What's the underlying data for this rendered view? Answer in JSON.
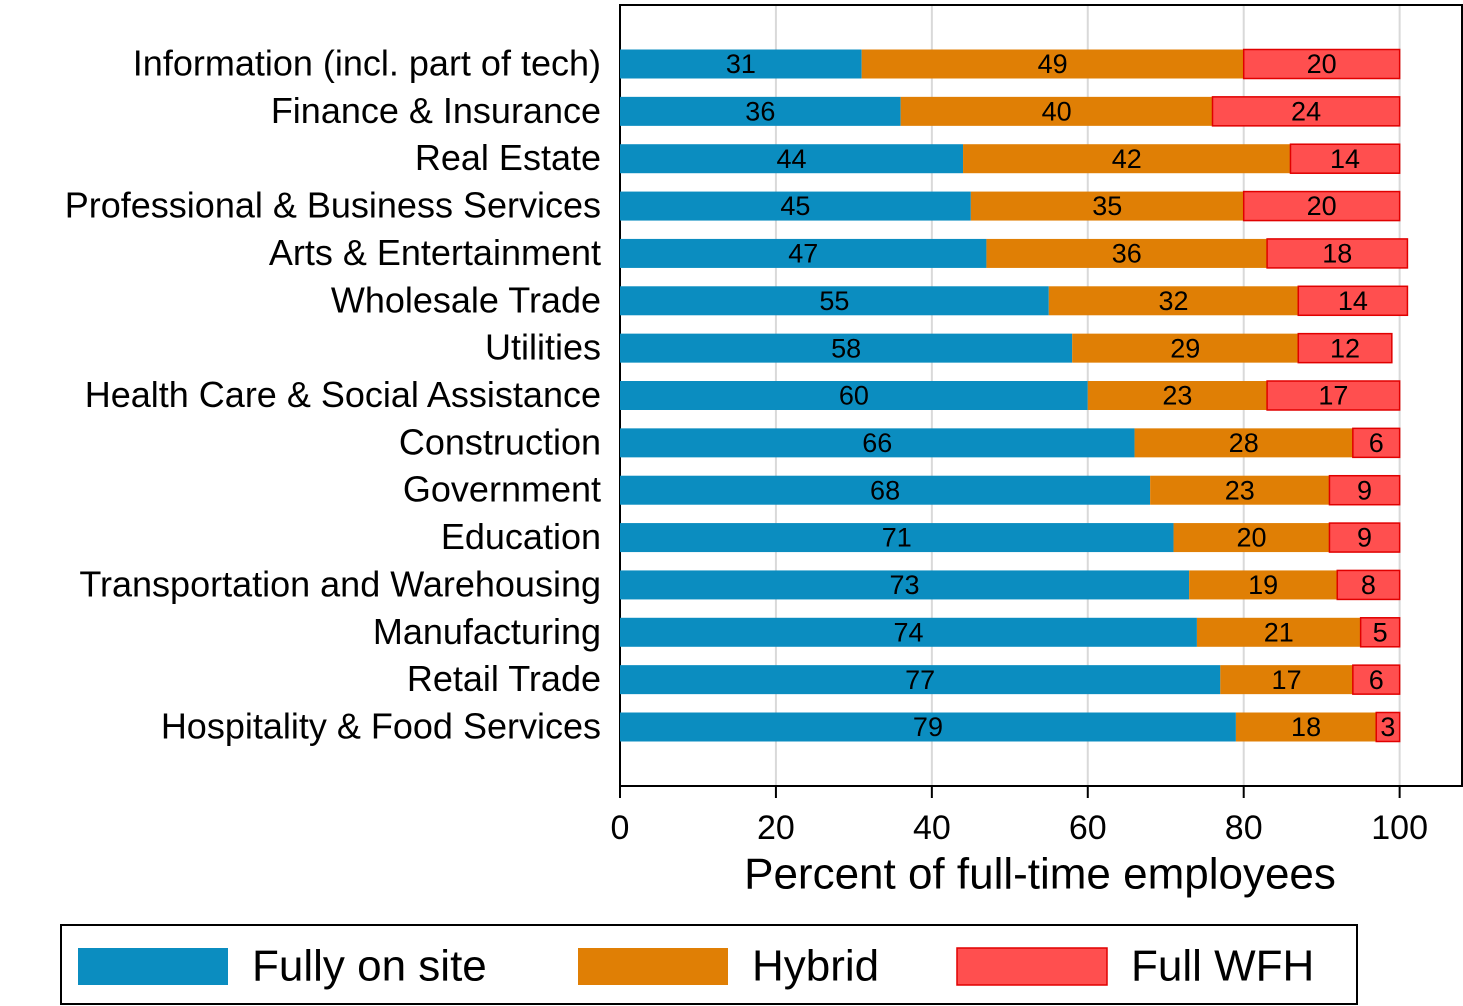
{
  "chart_data": {
    "type": "stacked_barh",
    "categories": [
      "Information (incl. part of tech)",
      "Finance & Insurance",
      "Real Estate",
      "Professional & Business Services",
      "Arts & Entertainment",
      "Wholesale Trade",
      "Utilities",
      "Health Care & Social Assistance",
      "Construction",
      "Government",
      "Education",
      "Transportation and Warehousing",
      "Manufacturing",
      "Retail Trade",
      "Hospitality & Food Services"
    ],
    "series": [
      {
        "name": "Fully on site",
        "color": "#0b8dc0",
        "values": [
          31,
          36,
          44,
          45,
          47,
          55,
          58,
          60,
          66,
          68,
          71,
          73,
          74,
          77,
          79
        ]
      },
      {
        "name": "Hybrid",
        "color": "#e07f05",
        "values": [
          49,
          40,
          42,
          35,
          36,
          32,
          29,
          23,
          28,
          23,
          20,
          19,
          21,
          17,
          18
        ]
      },
      {
        "name": "Full WFH",
        "color": "#ff4f4f",
        "values": [
          20,
          24,
          14,
          20,
          18,
          14,
          12,
          17,
          6,
          9,
          9,
          8,
          5,
          6,
          3
        ]
      }
    ],
    "xlabel": "Percent of full-time employees",
    "xlim": [
      0,
      108
    ],
    "xticks": [
      0,
      20,
      40,
      60,
      80,
      100
    ],
    "grid": true
  }
}
